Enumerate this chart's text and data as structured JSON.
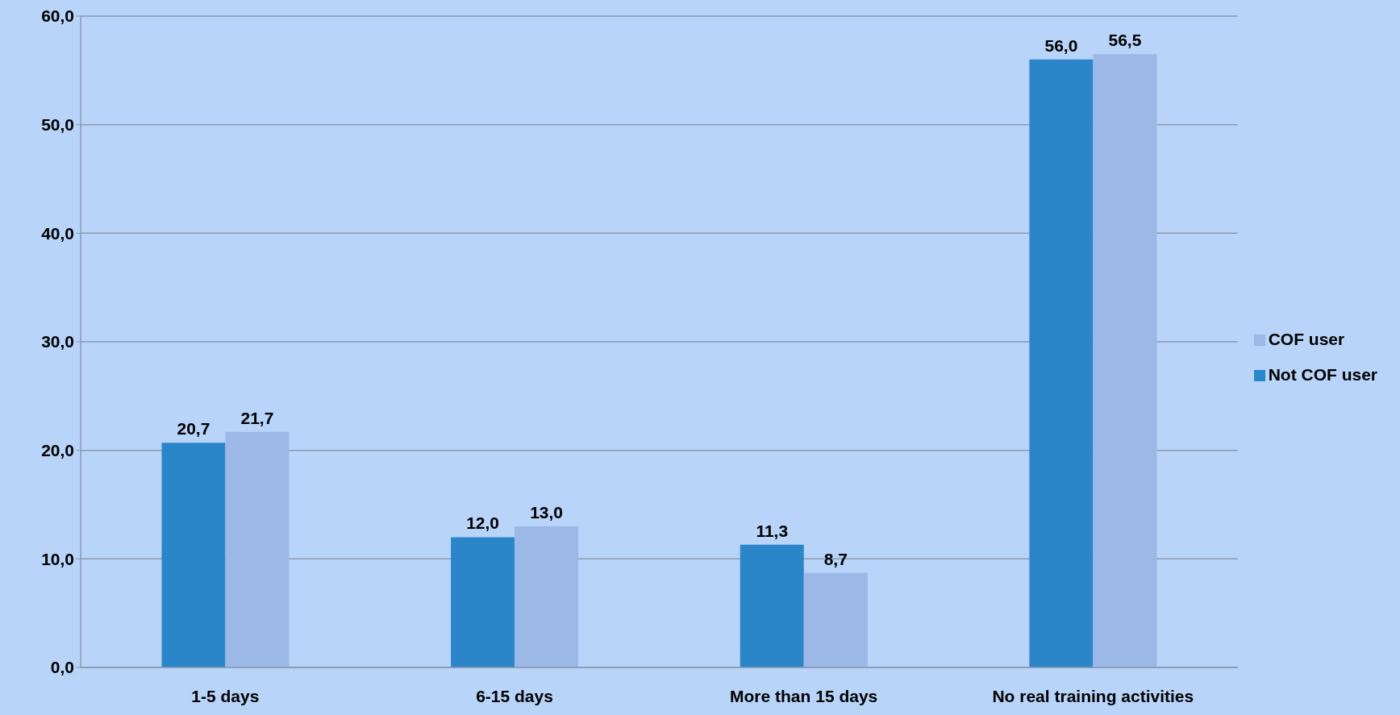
{
  "chart_data": {
    "type": "bar",
    "categories": [
      "1-5 days",
      "6-15 days",
      "More than 15 days",
      "No real training activities"
    ],
    "series": [
      {
        "name": "Not COF user",
        "color": "#2a86c9",
        "values": [
          20.7,
          12.0,
          11.3,
          56.0
        ],
        "value_labels": [
          "20,7",
          "12,0",
          "11,3",
          "56,0"
        ]
      },
      {
        "name": "COF user",
        "color": "#9bb8e6",
        "values": [
          21.7,
          13.0,
          8.7,
          56.5
        ],
        "value_labels": [
          "21,7",
          "13,0",
          "8,7",
          "56,5"
        ]
      }
    ],
    "ylim": [
      0,
      60
    ],
    "yticks": [
      {
        "value": 0,
        "label": "0,0"
      },
      {
        "value": 10,
        "label": "10,0"
      },
      {
        "value": 20,
        "label": "20,0"
      },
      {
        "value": 30,
        "label": "30,0"
      },
      {
        "value": 40,
        "label": "40,0"
      },
      {
        "value": 50,
        "label": "50,0"
      },
      {
        "value": 60,
        "label": "60,0"
      }
    ],
    "grid": "y",
    "legend": "right"
  }
}
